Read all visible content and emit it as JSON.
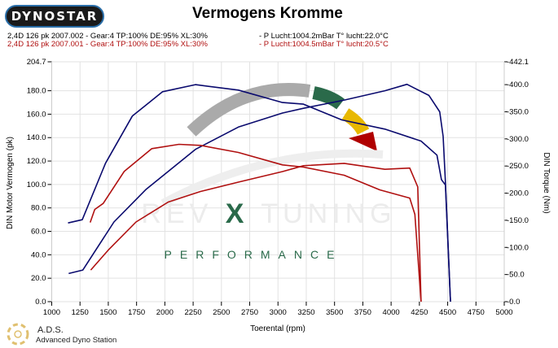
{
  "header": {
    "logo_text": "DYNOSTAR",
    "run1": {
      "desc": "2,4D 126 pk 2007.002 - Gear:4 TP:100% DE:95% XL:30%",
      "cond": "- P Lucht:1004.2mBar T° lucht:22.0°C",
      "color": "#000000"
    },
    "run2": {
      "desc": "2,4D 126 pk 2007.001 - Gear:4 TP:100% DE:95% XL:30%",
      "cond": "- P Lucht:1004.5mBar T° lucht:20.5°C",
      "color": "#b01010"
    }
  },
  "footer": {
    "brand": "A.D.S.",
    "subtitle": "Advanced Dyno Station"
  },
  "watermark": {
    "brand": "REV X TUNING",
    "tagline": "PERFORMANCE"
  },
  "chart_data": {
    "type": "line",
    "title": "Vermogens Kromme",
    "xlabel": "Toerental (rpm)",
    "ylabel": "DIN Motor Vermogen (pk)",
    "y2label": "DIN Torque (Nm)",
    "xlim": [
      1000,
      5000
    ],
    "ylim": [
      0,
      204.7
    ],
    "y2lim": [
      0,
      442.1
    ],
    "xticks": [
      "1000",
      "1250",
      "1500",
      "1750",
      "2000",
      "2250",
      "2500",
      "2750",
      "3000",
      "3250",
      "3500",
      "3750",
      "4000",
      "4250",
      "4500",
      "4750",
      "5000"
    ],
    "yticks": [
      "0.0",
      "20.0",
      "40.0",
      "60.0",
      "80.0",
      "100.0",
      "120.0",
      "140.0",
      "160.0",
      "180.0",
      "204.7"
    ],
    "y2ticks": [
      "-0.0",
      "-50.0",
      "-100.0",
      "-150.0",
      "-200.0",
      "-250.0",
      "-300.0",
      "-350.0",
      "-400.0",
      "-442.1"
    ],
    "grid": true,
    "series": [
      {
        "run": "2007.002",
        "quantity": "power",
        "axis": "left",
        "color": "#0a0a6e",
        "x": [
          1150,
          1275,
          1550,
          1835,
          2270,
          2650,
          3040,
          3225,
          3585,
          3945,
          4140,
          4335,
          4430,
          4460,
          4480,
          4525
        ],
        "y": [
          24,
          27,
          68,
          96,
          130,
          149,
          161,
          165,
          172,
          180,
          185.5,
          176,
          162,
          141,
          102,
          0
        ]
      },
      {
        "run": "2007.002",
        "quantity": "torque",
        "axis": "right",
        "color": "#0a0a6e",
        "x": [
          1144,
          1270,
          1475,
          1712,
          1980,
          2270,
          2650,
          3040,
          3225,
          3565,
          3945,
          4265,
          4405,
          4445,
          4480,
          4525
        ],
        "y": [
          145,
          151,
          255,
          342,
          387,
          400,
          390,
          367,
          364,
          335,
          318,
          296,
          270,
          225,
          215,
          0
        ]
      },
      {
        "run": "2007.001",
        "quantity": "power",
        "axis": "left",
        "color": "#b01010",
        "x": [
          1345,
          1500,
          1745,
          2030,
          2315,
          2650,
          3040,
          3225,
          3585,
          3945,
          4165,
          4235,
          4265
        ],
        "y": [
          27,
          44,
          68,
          85,
          94,
          102,
          111,
          116,
          118,
          113,
          114,
          98,
          0
        ]
      },
      {
        "run": "2007.001",
        "quantity": "torque",
        "axis": "right",
        "color": "#b01010",
        "x": [
          1340,
          1380,
          1455,
          1640,
          1885,
          2125,
          2315,
          2650,
          3040,
          3225,
          3585,
          3900,
          4165,
          4210,
          4265
        ],
        "y": [
          146,
          170,
          181,
          240,
          282,
          290,
          288,
          275,
          252,
          248,
          233,
          206,
          191,
          161,
          0
        ]
      }
    ]
  }
}
